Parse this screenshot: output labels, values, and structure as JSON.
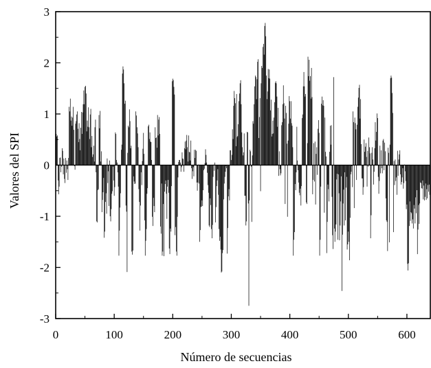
{
  "chart_data": {
    "type": "bar",
    "xlabel": "Número de secuencias",
    "ylabel": "Valores del SPI",
    "xlim": [
      0,
      640
    ],
    "ylim": [
      -3,
      3
    ],
    "x_ticks": [
      "0",
      "100",
      "200",
      "300",
      "400",
      "500",
      "600"
    ],
    "y_ticks": [
      "-3",
      "-2",
      "-1",
      "0",
      "1",
      "2",
      "3"
    ],
    "grid": false,
    "bar_color": "#000000",
    "zero_line": true,
    "series": [
      {
        "x_start": 1,
        "x_step": 1,
        "values": [
          0.61,
          0.56,
          0.58,
          -0.3,
          -0.57,
          -0.42,
          0.14,
          0.15,
          -0.14,
          -0.03,
          0.33,
          0.28,
          -0.18,
          0.13,
          -0.27,
          -0.35,
          0.14,
          -0.15,
          0.09,
          -0.08,
          -0.29,
          0.14,
          1.14,
          1.05,
          1.3,
          0.87,
          0.95,
          0.77,
          0.93,
          1.14,
          0.69,
          -0.02,
          -0.09,
          0.81,
          0.86,
          0.99,
          1.05,
          0.71,
          0.45,
          0.82,
          0.51,
          0.29,
          0.73,
          1.04,
          0.61,
          1.03,
          1.19,
          1.46,
          1.19,
          1.53,
          1.55,
          1.4,
          0.66,
          0.87,
          0.75,
          1.13,
          0.74,
          0.51,
          0.99,
          1.1,
          0.35,
          0.57,
          0.16,
          0.21,
          0.38,
          0.07,
          0.74,
          0.89,
          -0.14,
          -1.1,
          -1.12,
          -0.49,
          -0.47,
          0.98,
          0.72,
          1.06,
          0.07,
          0.27,
          -0.92,
          -0.68,
          -0.53,
          -0.25,
          -1.42,
          -1.3,
          -0.72,
          -0.55,
          -0.95,
          0.13,
          -0.35,
          -0.12,
          -0.8,
          0.09,
          -1.0,
          -1.1,
          -0.86,
          -0.56,
          -0.51,
          -0.03,
          -0.3,
          -0.6,
          -0.43,
          0.64,
          0.61,
          0.1,
          0.05,
          -0.14,
          -0.42,
          -1.77,
          -1.28,
          -0.83,
          -0.55,
          0.3,
          0.4,
          1.79,
          1.93,
          1.87,
          1.6,
          1.2,
          1.26,
          -0.79,
          -0.91,
          -2.09,
          0.24,
          0.77,
          0.74,
          1.09,
          0.86,
          0.33,
          0.38,
          -1.69,
          -1.75,
          -1.67,
          -0.22,
          -0.32,
          -0.37,
          -0.36,
          1.05,
          0.97,
          0.74,
          0.62,
          0.35,
          -0.47,
          -0.72,
          -1.28,
          -0.79,
          -0.14,
          -0.39,
          0.08,
          0.32,
          0.63,
          0.22,
          -1.08,
          -1.77,
          -1.48,
          -1.25,
          -0.56,
          -0.45,
          0.76,
          0.79,
          0.51,
          0.64,
          0.46,
          0.45,
          0.1,
          -1.01,
          -1.19,
          -0.64,
          -0.8,
          -0.92,
          0.74,
          0.53,
          0.54,
          0.34,
          0.98,
          0.58,
          0.89,
          0.94,
          0.61,
          -1.2,
          -1.34,
          -0.36,
          -1.77,
          -1.69,
          -0.76,
          -1.78,
          -0.52,
          -0.37,
          -0.3,
          -0.56,
          -1.05,
          -0.42,
          -0.29,
          -0.54,
          -1.63,
          -1.74,
          -1.24,
          -1.3,
          -0.41,
          1.64,
          1.69,
          1.66,
          1.53,
          1.38,
          -1.37,
          -1.21,
          -1.69,
          -1.77,
          -1.01,
          -0.24,
          0.06,
          0.1,
          0.1,
          0.05,
          -0.13,
          -0.04,
          0.25,
          0.13,
          0.12,
          -0.13,
          0.33,
          0.46,
          0.31,
          0.48,
          0.59,
          0.35,
          0.07,
          0.58,
          0.26,
          0.25,
          0.09,
          0.48,
          -0.06,
          -0.27,
          -0.12,
          -0.04,
          -0.22,
          0.3,
          0.14,
          0.3,
          0.28,
          -0.34,
          -0.5,
          -0.34,
          0.01,
          -0.36,
          -1.5,
          -1.27,
          -0.82,
          -0.81,
          -0.69,
          -0.8,
          -0.49,
          -0.1,
          -0.07,
          0.04,
          0.31,
          0.2,
          0.05,
          -0.15,
          -0.39,
          -0.54,
          -1.18,
          -1.21,
          -0.65,
          -0.78,
          -1.25,
          -1.43,
          -1.17,
          -0.23,
          0.01,
          -0.11,
          0.05,
          -1.12,
          -0.82,
          -0.41,
          -0.3,
          -0.08,
          -0.58,
          -1.25,
          -1.48,
          -1.4,
          -1.65,
          -2.1,
          -2.08,
          -1.72,
          -1.66,
          -0.67,
          -0.36,
          -0.23,
          -0.13,
          -0.02,
          -0.06,
          -1.73,
          -1.23,
          -0.61,
          -0.47,
          -0.69,
          0.29,
          0.29,
          0.1,
          0.2,
          0.7,
          0.51,
          1.16,
          1.45,
          1.31,
          1.21,
          0.37,
          1.39,
          0.55,
          0.57,
          0.8,
          1.25,
          1.4,
          1.6,
          1.66,
          1.19,
          0.64,
          0.35,
          0.19,
          0.25,
          0.62,
          -0.6,
          -0.6,
          -1.18,
          -1.1,
          0.65,
          0.64,
          -0.75,
          -2.75,
          -0.69,
          0.3,
          0.27,
          -0.03,
          -1.11,
          0.19,
          0.86,
          0.81,
          1.19,
          1.54,
          1.75,
          1.72,
          1.29,
          1.68,
          2.02,
          2.07,
          0.53,
          0.94,
          1.31,
          -0.51,
          1.6,
          1.94,
          1.9,
          2.31,
          2.37,
          2.16,
          2.72,
          2.78,
          2.52,
          1.75,
          1.29,
          1.44,
          1.88,
          1.7,
          1.87,
          1.69,
          1.07,
          1.28,
          0.56,
          0.61,
          0.87,
          0.62,
          0.93,
          1.23,
          1.61,
          1.64,
          1.6,
          1.34,
          0.75,
          1.12,
          -0.21,
          0.27,
          -0.08,
          -0.2,
          -0.16,
          0.78,
          0.84,
          1.19,
          1.56,
          1.21,
          0.91,
          -0.76,
          1.16,
          1.02,
          0.42,
          -1.01,
          0.48,
          0.81,
          1.35,
          1.25,
          0.91,
          1.25,
          0.82,
          0.77,
          0.35,
          -1.77,
          -1.46,
          -1.31,
          -0.37,
          -0.49,
          -0.14,
          0.75,
          0.09,
          -0.1,
          -0.34,
          -0.54,
          -0.59,
          -0.46,
          -0.79,
          -0.41,
          0.92,
          0.99,
          1.54,
          1.82,
          1.54,
          1.34,
          1.39,
          -0.73,
          -0.76,
          0.43,
          2.12,
          1.74,
          2.06,
          1.65,
          1.74,
          1.3,
          1.9,
          1.33,
          -0.57,
          -0.29,
          0.43,
          -0.32,
          0.46,
          -0.77,
          0.22,
          0.35,
          -0.19,
          0.71,
          0.88,
          0.63,
          -1.77,
          -1.46,
          -0.42,
          1.2,
          1.34,
          1.17,
          1.27,
          1.16,
          -0.93,
          0.93,
          0.26,
          0.17,
          -1.72,
          -1.11,
          -0.38,
          -0.47,
          -0.71,
          0.26,
          0.77,
          0.4,
          0.78,
          -0.62,
          -1.37,
          -1.64,
          1.72,
          -1.24,
          -1.5,
          -1.3,
          -1.16,
          -0.28,
          -0.17,
          -1.46,
          -0.18,
          -0.55,
          -1.47,
          -1.18,
          -0.71,
          -0.22,
          -2.46,
          -1.36,
          -0.75,
          -0.48,
          -1.18,
          -0.14,
          -1.08,
          -0.44,
          -0.23,
          -1.65,
          -1.55,
          -1.3,
          -1.5,
          -1.86,
          -1.03,
          -0.18,
          -0.13,
          -0.02,
          -0.43,
          1.05,
          0.84,
          -0.84,
          0.93,
          0.82,
          0.7,
          -0.29,
          0.79,
          1.14,
          1.32,
          1.51,
          1.57,
          0.91,
          1.29,
          0.41,
          -0.26,
          -0.26,
          -0.58,
          -0.43,
          0.5,
          0.26,
          0.36,
          0.43,
          0.16,
          -0.42,
          0.28,
          -0.03,
          0.54,
          0.35,
          0.23,
          -1.43,
          -0.98,
          0.24,
          0.35,
          0.11,
          -0.38,
          -0.13,
          0.33,
          0.84,
          0.48,
          0.65,
          1.01,
          0.92,
          -0.23,
          -0.56,
          -0.31,
          0.38,
          -0.16,
          0.29,
          -0.06,
          -0.16,
          0.48,
          0.51,
          -0.1,
          0.44,
          0.27,
          -0.65,
          -1.08,
          -1.11,
          -1.68,
          0.34,
          0.24,
          -1.51,
          0.4,
          1.7,
          1.75,
          1.71,
          1.41,
          1.02,
          -1.31,
          0.08,
          -0.39,
          0.11,
          -0.31,
          -0.24,
          -0.58,
          0.28,
          -0.21,
          0.11,
          0.21,
          0.29,
          -0.18,
          -0.38,
          -0.33,
          -0.24,
          -0.06,
          -0.46,
          -0.35,
          0.01,
          -0.12,
          -0.31,
          -0.86,
          -0.77,
          -1.93,
          -2.06,
          -1.92,
          -1.19,
          -0.71,
          -1.09,
          -0.92,
          -0.94,
          -1.14,
          -1.06,
          -1.24,
          -0.78,
          -0.85,
          -1.14,
          -0.63,
          -0.94,
          -0.49,
          -1.74,
          -1.26,
          -0.78,
          -1.15,
          -0.75,
          -0.34,
          -0.35,
          -0.45,
          -0.46,
          -0.3,
          -0.67,
          -0.4,
          -0.69,
          -0.62,
          -0.36,
          -0.68,
          -0.47,
          -0.65,
          -0.39,
          -0.52,
          -0.38,
          -0.58
        ]
      }
    ]
  }
}
